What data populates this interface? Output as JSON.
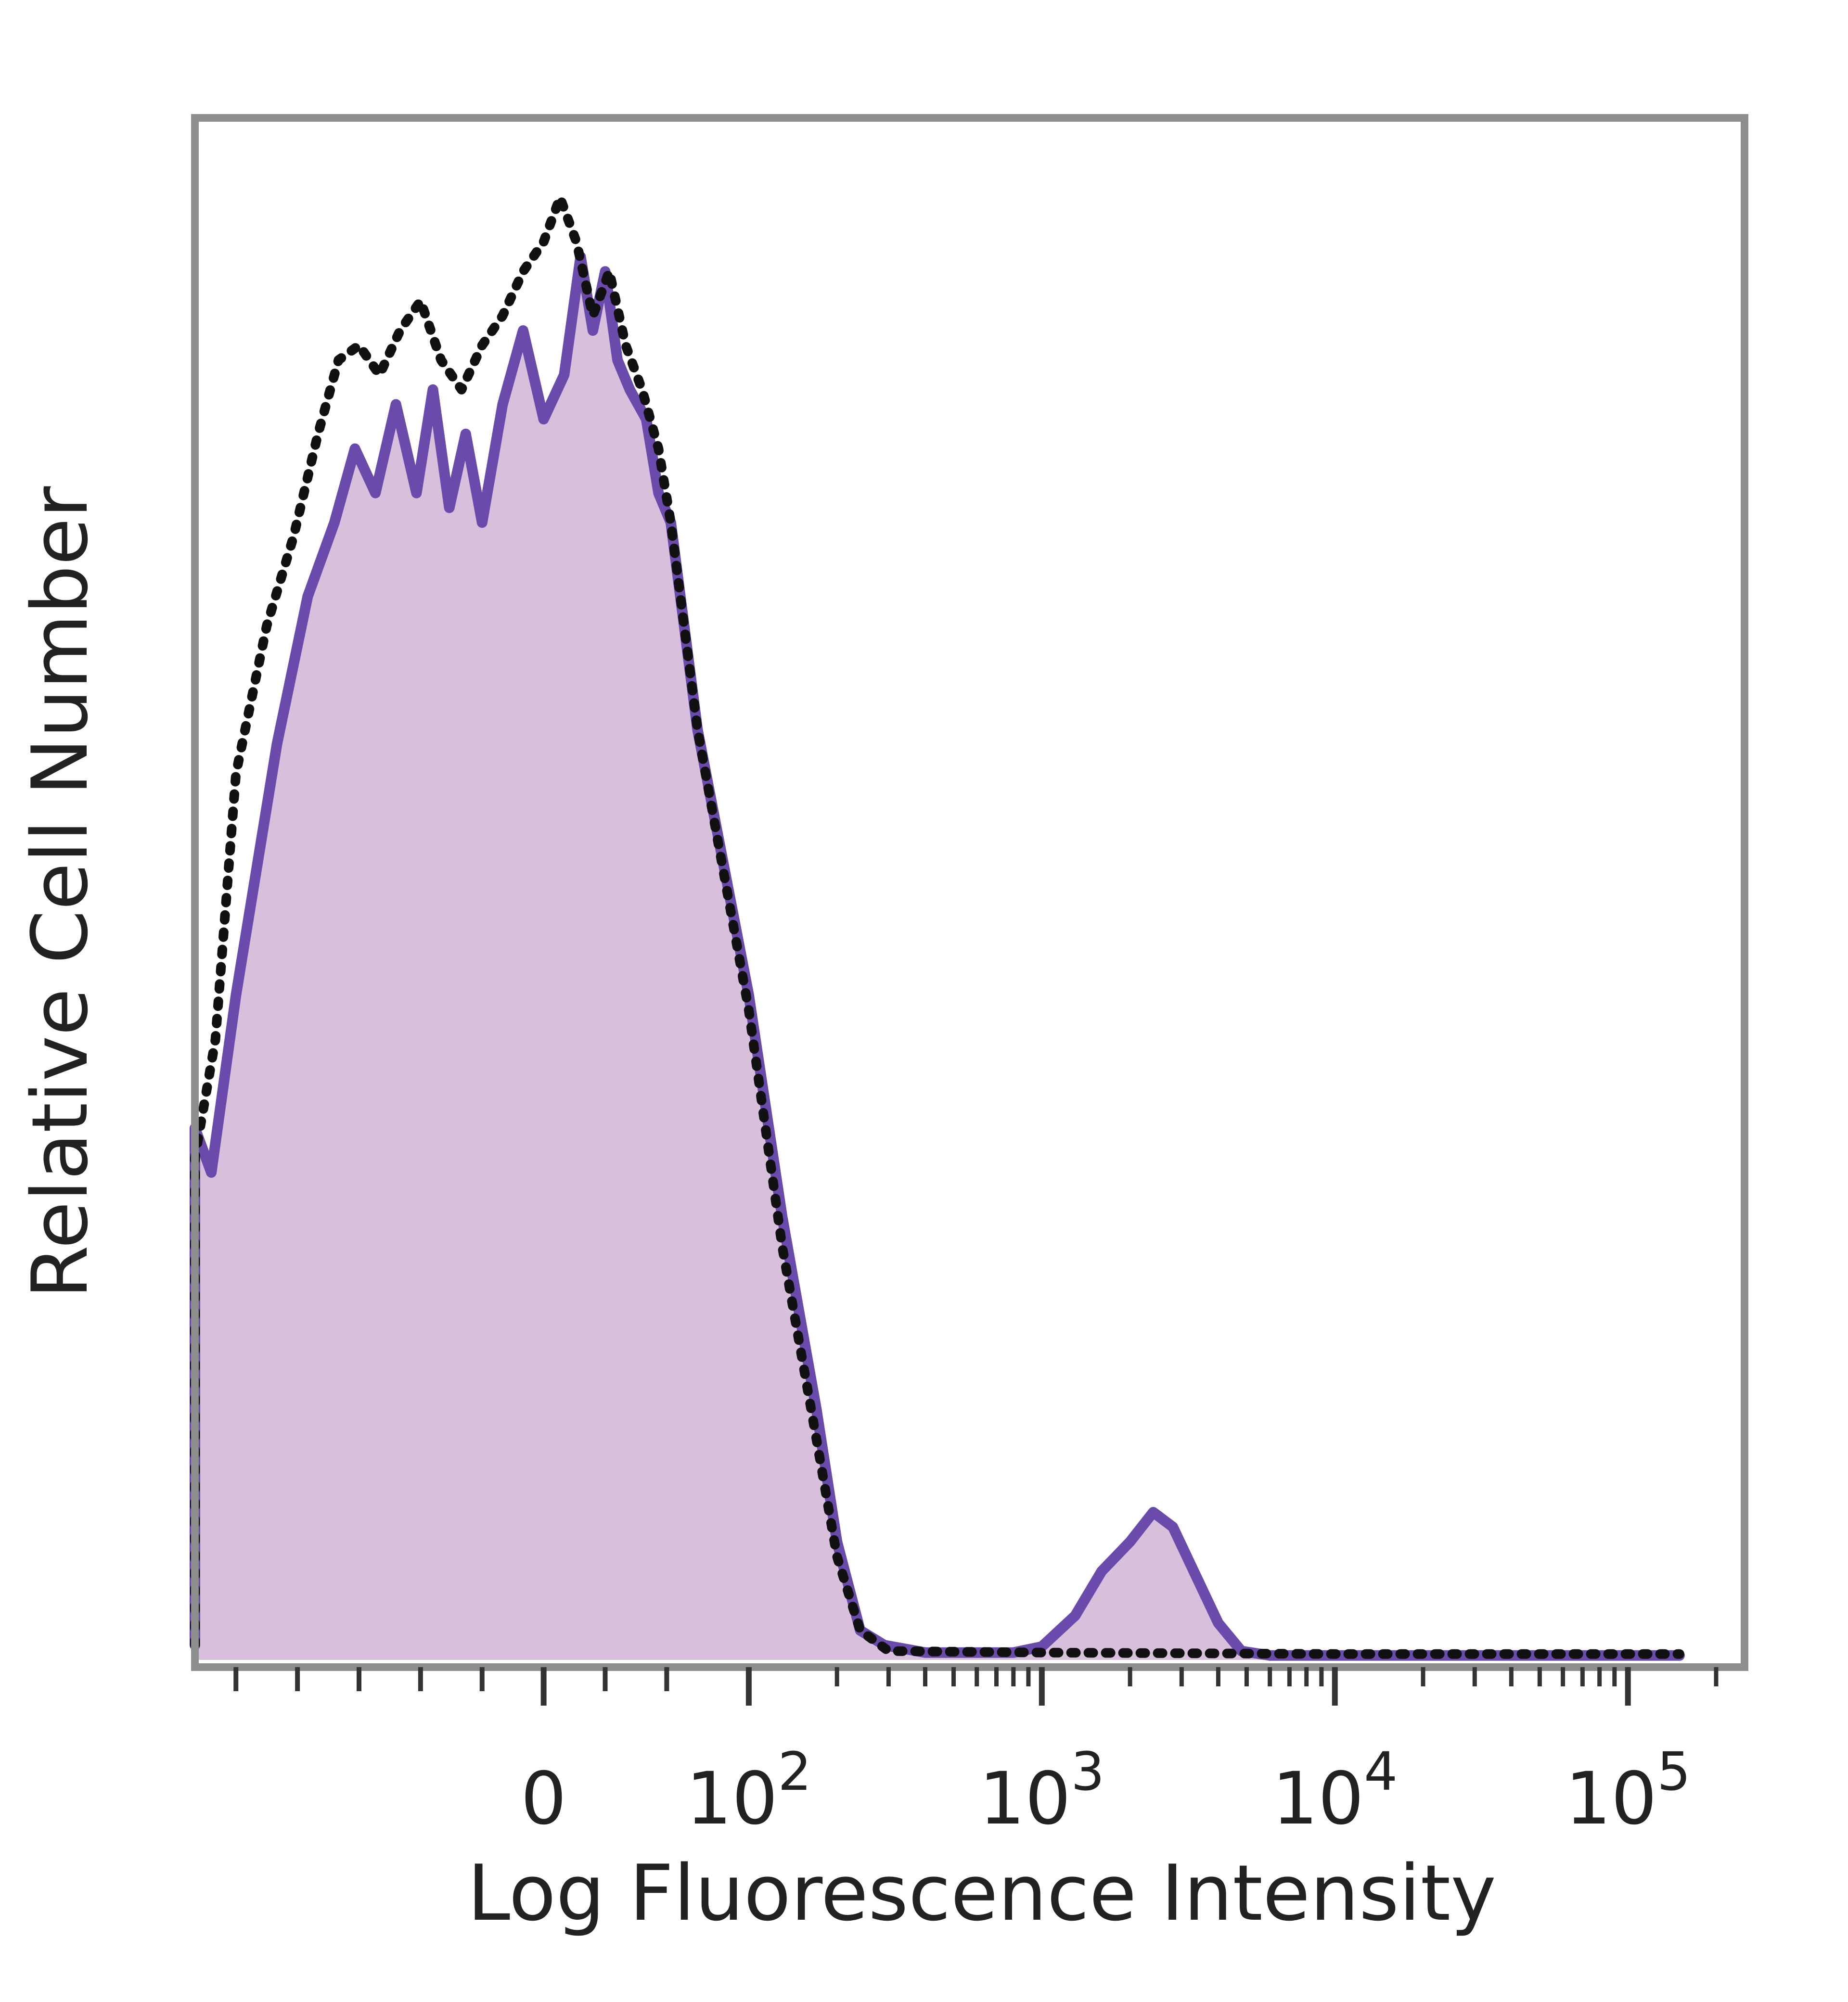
{
  "chart_data": {
    "type": "area",
    "title": "",
    "xlabel": "Log Fluorescence Intensity",
    "ylabel": "Relative Cell Number",
    "xscale": "biexponential",
    "yscale": "linear",
    "ylim": [
      0,
      100
    ],
    "grid": false,
    "legend": "none",
    "x_ticks": [
      {
        "value": 0,
        "base": "0",
        "exp": ""
      },
      {
        "value": 100,
        "base": "10",
        "exp": "2"
      },
      {
        "value": 1000,
        "base": "10",
        "exp": "3"
      },
      {
        "value": 10000,
        "base": "10",
        "exp": "4"
      },
      {
        "value": 100000,
        "base": "10",
        "exp": "5"
      }
    ],
    "series": [
      {
        "style": "filled",
        "color": "#6a4bab",
        "fill": "#d8bfdc",
        "points": [
          [
            -170,
            1
          ],
          [
            -170,
            36
          ],
          [
            -162,
            33
          ],
          [
            -150,
            45
          ],
          [
            -130,
            62
          ],
          [
            -115,
            72
          ],
          [
            -102,
            77
          ],
          [
            -92,
            82
          ],
          [
            -82,
            79
          ],
          [
            -72,
            85
          ],
          [
            -62,
            79
          ],
          [
            -54,
            86
          ],
          [
            -46,
            78
          ],
          [
            -38,
            83
          ],
          [
            -30,
            77
          ],
          [
            -20,
            85
          ],
          [
            -10,
            90
          ],
          [
            0,
            84
          ],
          [
            10,
            87
          ],
          [
            18,
            95
          ],
          [
            24,
            90
          ],
          [
            30,
            94
          ],
          [
            36,
            88
          ],
          [
            42,
            86
          ],
          [
            50,
            84
          ],
          [
            56,
            79
          ],
          [
            62,
            77
          ],
          [
            75,
            63
          ],
          [
            100,
            45
          ],
          [
            130,
            30
          ],
          [
            170,
            17
          ],
          [
            200,
            8
          ],
          [
            240,
            2
          ],
          [
            290,
            1
          ],
          [
            400,
            0.5
          ],
          [
            800,
            0.5
          ],
          [
            1000,
            0.9
          ],
          [
            1300,
            3
          ],
          [
            1600,
            6
          ],
          [
            2000,
            8
          ],
          [
            2400,
            10
          ],
          [
            2800,
            9
          ],
          [
            3300,
            6
          ],
          [
            4000,
            2.5
          ],
          [
            4800,
            0.6
          ],
          [
            6000,
            0.3
          ],
          [
            20000,
            0.3
          ],
          [
            150000,
            0.3
          ]
        ]
      },
      {
        "style": "dotted",
        "color": "#111111",
        "points": [
          [
            -170,
            1
          ],
          [
            -170,
            34
          ],
          [
            -160,
            42
          ],
          [
            -150,
            60
          ],
          [
            -135,
            70
          ],
          [
            -122,
            76
          ],
          [
            -110,
            83
          ],
          [
            -100,
            88
          ],
          [
            -90,
            89
          ],
          [
            -80,
            87
          ],
          [
            -70,
            90
          ],
          [
            -60,
            92
          ],
          [
            -50,
            88
          ],
          [
            -40,
            86
          ],
          [
            -30,
            89
          ],
          [
            -20,
            91
          ],
          [
            -10,
            94
          ],
          [
            0,
            96
          ],
          [
            8,
            99
          ],
          [
            16,
            96
          ],
          [
            24,
            91
          ],
          [
            32,
            94
          ],
          [
            40,
            89
          ],
          [
            48,
            86
          ],
          [
            56,
            82
          ],
          [
            62,
            77
          ],
          [
            75,
            63
          ],
          [
            100,
            44
          ],
          [
            130,
            28
          ],
          [
            170,
            15
          ],
          [
            200,
            7
          ],
          [
            240,
            2
          ],
          [
            300,
            0.6
          ],
          [
            1000,
            0.5
          ],
          [
            10000,
            0.4
          ],
          [
            150000,
            0.4
          ]
        ]
      }
    ]
  }
}
